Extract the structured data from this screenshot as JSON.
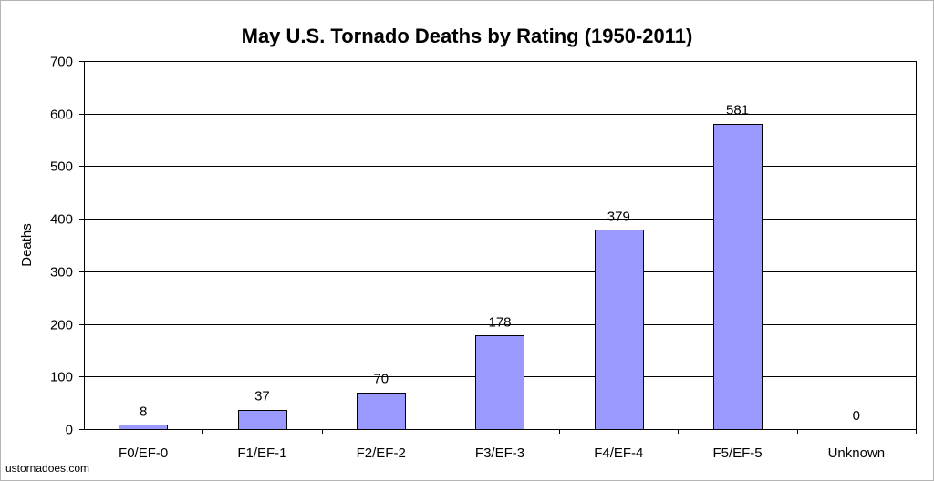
{
  "chart_data": {
    "type": "bar",
    "title": "May U.S. Tornado Deaths by Rating (1950-2011)",
    "xlabel": "",
    "ylabel": "Deaths",
    "categories": [
      "F0/EF-0",
      "F1/EF-1",
      "F2/EF-2",
      "F3/EF-3",
      "F4/EF-4",
      "F5/EF-5",
      "Unknown"
    ],
    "values": [
      8,
      37,
      70,
      178,
      379,
      581,
      0
    ],
    "data_labels": [
      "8",
      "37",
      "70",
      "178",
      "379",
      "581",
      "0"
    ],
    "ylim": [
      0,
      700
    ],
    "yticks": [
      0,
      100,
      200,
      300,
      400,
      500,
      600,
      700
    ],
    "ytick_labels": [
      "0",
      "100",
      "200",
      "300",
      "400",
      "500",
      "600",
      "700"
    ],
    "grid": true,
    "legend": "none",
    "bar_color": "#9999ff"
  },
  "source": "ustornadoes.com"
}
